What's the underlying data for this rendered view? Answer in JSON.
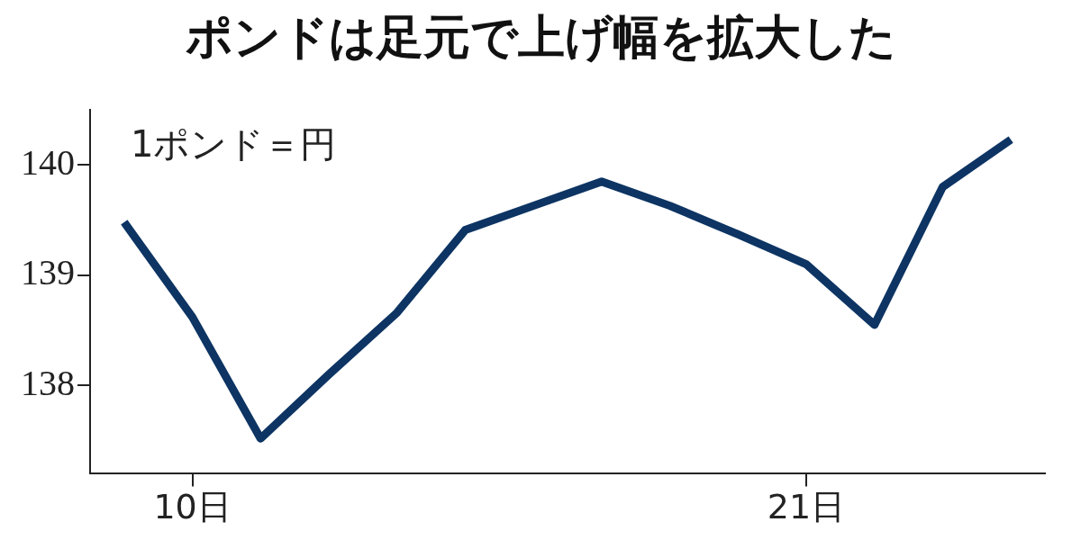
{
  "chart_data": {
    "type": "line",
    "title": "ポンドは足元で上げ幅を拡大した",
    "annotations": [
      "1ポンド＝円"
    ],
    "categories": [
      null,
      "10日",
      null,
      null,
      null,
      null,
      null,
      null,
      null,
      null,
      "21日",
      null,
      null,
      null
    ],
    "series": [
      {
        "color": "#0d3463",
        "values": [
          139.48,
          138.62,
          137.52,
          138.1,
          138.66,
          139.41,
          139.63,
          139.85,
          139.63,
          139.37,
          139.1,
          138.55,
          139.8,
          140.23
        ]
      }
    ],
    "ylim": [
      137.2,
      140.5
    ],
    "yticks": [
      138,
      139,
      140
    ],
    "grid": false,
    "legend": false,
    "marker": "none",
    "line_style": "solid"
  }
}
